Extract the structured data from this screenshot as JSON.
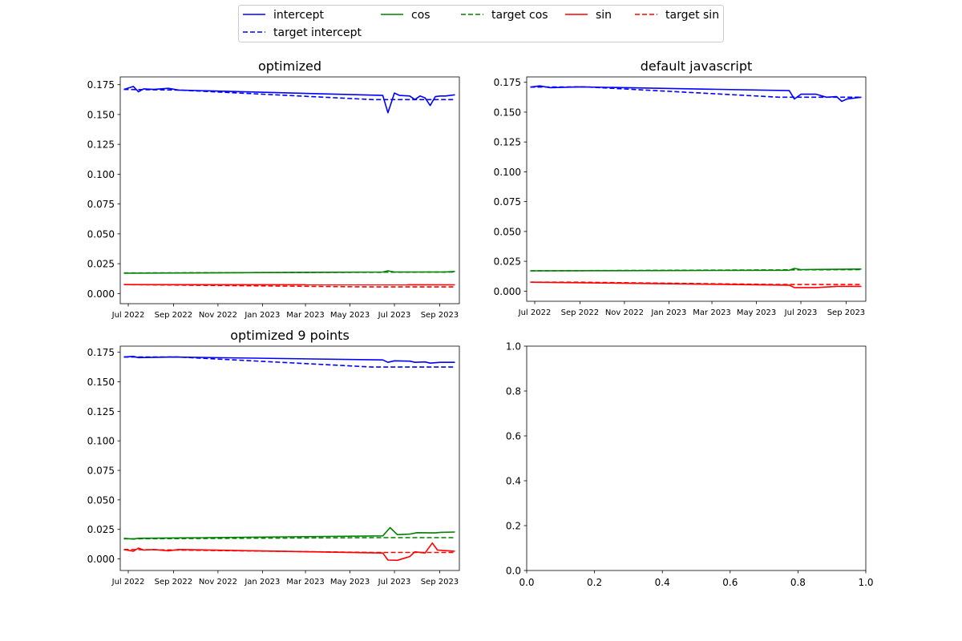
{
  "legend": {
    "placement": "top-center",
    "entries": [
      {
        "label": "intercept",
        "color": "#0000ff",
        "dash": "solid"
      },
      {
        "label": "target intercept",
        "color": "#0000ff",
        "dash": "dashed"
      },
      {
        "label": "cos",
        "color": "#008000",
        "dash": "solid"
      },
      {
        "label": "target cos",
        "color": "#008000",
        "dash": "dashed"
      },
      {
        "label": "sin",
        "color": "#ff0000",
        "dash": "solid"
      },
      {
        "label": "target sin",
        "color": "#ff0000",
        "dash": "dashed"
      }
    ]
  },
  "chart_data": [
    {
      "type": "line",
      "title": "optimized",
      "xlabel": "",
      "ylabel": "",
      "x_axis": "date",
      "xlim": [
        "2022-06-20",
        "2023-09-28"
      ],
      "ylim": [
        -0.0085,
        0.1815
      ],
      "xticks": [
        {
          "date": "2022-07-01",
          "label": "Jul 2022"
        },
        {
          "date": "2022-09-01",
          "label": "Sep 2022"
        },
        {
          "date": "2022-11-01",
          "label": "Nov 2022"
        },
        {
          "date": "2023-01-01",
          "label": "Jan 2023"
        },
        {
          "date": "2023-03-01",
          "label": "Mar 2023"
        },
        {
          "date": "2023-05-01",
          "label": "May 2023"
        },
        {
          "date": "2023-07-01",
          "label": "Jul 2023"
        },
        {
          "date": "2023-09-01",
          "label": "Sep 2023"
        }
      ],
      "yticks": [
        {
          "value": 0.0,
          "label": "0.000"
        },
        {
          "value": 0.025,
          "label": "0.025"
        },
        {
          "value": 0.05,
          "label": "0.050"
        },
        {
          "value": 0.075,
          "label": "0.075"
        },
        {
          "value": 0.1,
          "label": "0.100"
        },
        {
          "value": 0.125,
          "label": "0.125"
        },
        {
          "value": 0.15,
          "label": "0.150"
        },
        {
          "value": 0.175,
          "label": "0.175"
        }
      ],
      "grid": false,
      "series": [
        {
          "name": "intercept",
          "color": "#0000ff",
          "dash": "solid",
          "x": [
            "2022-06-25",
            "2022-07-08",
            "2022-07-15",
            "2022-07-22",
            "2022-08-05",
            "2022-08-25",
            "2022-09-08",
            "2023-06-15",
            "2023-06-22",
            "2023-07-01",
            "2023-07-08",
            "2023-07-22",
            "2023-07-29",
            "2023-08-05",
            "2023-08-12",
            "2023-08-19",
            "2023-08-26",
            "2023-09-02",
            "2023-09-09",
            "2023-09-22"
          ],
          "y": [
            0.171,
            0.1735,
            0.169,
            0.1715,
            0.171,
            0.172,
            0.1705,
            0.166,
            0.1515,
            0.168,
            0.166,
            0.1655,
            0.1625,
            0.1655,
            0.164,
            0.1575,
            0.165,
            0.1655,
            0.1655,
            0.1665
          ]
        },
        {
          "name": "target intercept",
          "color": "#0000ff",
          "dash": "dashed",
          "x": [
            "2022-06-25",
            "2022-09-08",
            "2023-06-01",
            "2023-09-22"
          ],
          "y": [
            0.171,
            0.1705,
            0.1625,
            0.1625
          ]
        },
        {
          "name": "cos",
          "color": "#008000",
          "dash": "solid",
          "x": [
            "2022-06-25",
            "2023-06-15",
            "2023-06-22",
            "2023-07-01",
            "2023-09-08",
            "2023-09-22"
          ],
          "y": [
            0.017,
            0.018,
            0.019,
            0.018,
            0.018,
            0.0185
          ]
        },
        {
          "name": "target cos",
          "color": "#008000",
          "dash": "dashed",
          "x": [
            "2022-06-25",
            "2023-09-22"
          ],
          "y": [
            0.0172,
            0.018
          ]
        },
        {
          "name": "sin",
          "color": "#ff0000",
          "dash": "solid",
          "x": [
            "2022-06-25",
            "2023-09-22"
          ],
          "y": [
            0.0075,
            0.0073
          ]
        },
        {
          "name": "target sin",
          "color": "#ff0000",
          "dash": "dashed",
          "x": [
            "2022-06-25",
            "2023-06-01",
            "2023-09-22"
          ],
          "y": [
            0.0075,
            0.0055,
            0.0055
          ]
        }
      ]
    },
    {
      "type": "line",
      "title": "default javascript",
      "xlabel": "",
      "ylabel": "",
      "x_axis": "date",
      "xlim": [
        "2022-06-20",
        "2023-09-28"
      ],
      "ylim": [
        -0.0085,
        0.1795
      ],
      "xticks": [
        {
          "date": "2022-07-01",
          "label": "Jul 2022"
        },
        {
          "date": "2022-09-01",
          "label": "Sep 2022"
        },
        {
          "date": "2022-11-01",
          "label": "Nov 2022"
        },
        {
          "date": "2023-01-01",
          "label": "Jan 2023"
        },
        {
          "date": "2023-03-01",
          "label": "Mar 2023"
        },
        {
          "date": "2023-05-01",
          "label": "May 2023"
        },
        {
          "date": "2023-07-01",
          "label": "Jul 2023"
        },
        {
          "date": "2023-09-01",
          "label": "Sep 2023"
        }
      ],
      "yticks": [
        {
          "value": 0.0,
          "label": "0.000"
        },
        {
          "value": 0.025,
          "label": "0.025"
        },
        {
          "value": 0.05,
          "label": "0.050"
        },
        {
          "value": 0.075,
          "label": "0.075"
        },
        {
          "value": 0.1,
          "label": "0.100"
        },
        {
          "value": 0.125,
          "label": "0.125"
        },
        {
          "value": 0.15,
          "label": "0.150"
        },
        {
          "value": 0.175,
          "label": "0.175"
        }
      ],
      "grid": false,
      "series": [
        {
          "name": "intercept",
          "color": "#0000ff",
          "dash": "solid",
          "x": [
            "2022-06-25",
            "2022-07-08",
            "2022-07-22",
            "2022-09-01",
            "2023-06-15",
            "2023-06-22",
            "2023-07-01",
            "2023-07-22",
            "2023-08-05",
            "2023-08-19",
            "2023-08-26",
            "2023-09-02",
            "2023-09-22"
          ],
          "y": [
            0.171,
            0.172,
            0.1705,
            0.1712,
            0.168,
            0.161,
            0.165,
            0.165,
            0.1625,
            0.163,
            0.159,
            0.161,
            0.1625
          ]
        },
        {
          "name": "target intercept",
          "color": "#0000ff",
          "dash": "dashed",
          "x": [
            "2022-06-25",
            "2022-09-08",
            "2023-06-01",
            "2023-09-22"
          ],
          "y": [
            0.171,
            0.1712,
            0.1625,
            0.1625
          ]
        },
        {
          "name": "cos",
          "color": "#008000",
          "dash": "solid",
          "x": [
            "2022-06-25",
            "2023-06-15",
            "2023-06-22",
            "2023-07-01",
            "2023-09-22"
          ],
          "y": [
            0.017,
            0.0175,
            0.019,
            0.018,
            0.0185
          ]
        },
        {
          "name": "target cos",
          "color": "#008000",
          "dash": "dashed",
          "x": [
            "2022-06-25",
            "2023-09-22"
          ],
          "y": [
            0.017,
            0.018
          ]
        },
        {
          "name": "sin",
          "color": "#ff0000",
          "dash": "solid",
          "x": [
            "2022-06-25",
            "2023-06-15",
            "2023-06-22",
            "2023-07-22",
            "2023-08-19",
            "2023-09-22"
          ],
          "y": [
            0.0075,
            0.005,
            0.003,
            0.003,
            0.004,
            0.004
          ]
        },
        {
          "name": "target sin",
          "color": "#ff0000",
          "dash": "dashed",
          "x": [
            "2022-06-25",
            "2022-09-01",
            "2023-06-01",
            "2023-09-22"
          ],
          "y": [
            0.0075,
            0.0075,
            0.0055,
            0.0055
          ]
        }
      ]
    },
    {
      "type": "line",
      "title": "optimized 9 points",
      "xlabel": "",
      "ylabel": "",
      "x_axis": "date",
      "xlim": [
        "2022-06-20",
        "2023-09-28"
      ],
      "ylim": [
        -0.0098,
        0.1802
      ],
      "xticks": [
        {
          "date": "2022-07-01",
          "label": "Jul 2022"
        },
        {
          "date": "2022-09-01",
          "label": "Sep 2022"
        },
        {
          "date": "2022-11-01",
          "label": "Nov 2022"
        },
        {
          "date": "2023-01-01",
          "label": "Jan 2023"
        },
        {
          "date": "2023-03-01",
          "label": "Mar 2023"
        },
        {
          "date": "2023-05-01",
          "label": "May 2023"
        },
        {
          "date": "2023-07-01",
          "label": "Jul 2023"
        },
        {
          "date": "2023-09-01",
          "label": "Sep 2023"
        }
      ],
      "yticks": [
        {
          "value": 0.0,
          "label": "0.000"
        },
        {
          "value": 0.025,
          "label": "0.025"
        },
        {
          "value": 0.05,
          "label": "0.050"
        },
        {
          "value": 0.075,
          "label": "0.075"
        },
        {
          "value": 0.1,
          "label": "0.100"
        },
        {
          "value": 0.125,
          "label": "0.125"
        },
        {
          "value": 0.15,
          "label": "0.150"
        },
        {
          "value": 0.175,
          "label": "0.175"
        }
      ],
      "grid": false,
      "series": [
        {
          "name": "intercept",
          "color": "#0000ff",
          "dash": "solid",
          "x": [
            "2022-06-25",
            "2022-07-08",
            "2022-07-15",
            "2022-09-01",
            "2023-06-15",
            "2023-06-22",
            "2023-07-01",
            "2023-07-22",
            "2023-07-29",
            "2023-08-12",
            "2023-08-19",
            "2023-09-02",
            "2023-09-22"
          ],
          "y": [
            0.171,
            0.1715,
            0.1705,
            0.171,
            0.1685,
            0.1665,
            0.1678,
            0.1675,
            0.1665,
            0.1668,
            0.1658,
            0.1665,
            0.1665
          ]
        },
        {
          "name": "target intercept",
          "color": "#0000ff",
          "dash": "dashed",
          "x": [
            "2022-06-25",
            "2022-09-08",
            "2023-06-01",
            "2023-09-22"
          ],
          "y": [
            0.171,
            0.171,
            0.1625,
            0.1625
          ]
        },
        {
          "name": "cos",
          "color": "#008000",
          "dash": "solid",
          "x": [
            "2022-06-25",
            "2022-07-08",
            "2022-07-15",
            "2023-06-15",
            "2023-06-25",
            "2023-07-05",
            "2023-07-22",
            "2023-08-01",
            "2023-08-26",
            "2023-09-02",
            "2023-09-22"
          ],
          "y": [
            0.0175,
            0.0168,
            0.0175,
            0.0195,
            0.0265,
            0.0205,
            0.021,
            0.0222,
            0.022,
            0.0225,
            0.0228
          ]
        },
        {
          "name": "target cos",
          "color": "#008000",
          "dash": "dashed",
          "x": [
            "2022-06-25",
            "2023-06-01",
            "2023-09-22"
          ],
          "y": [
            0.017,
            0.018,
            0.018
          ]
        },
        {
          "name": "sin",
          "color": "#ff0000",
          "dash": "solid",
          "x": [
            "2022-06-25",
            "2022-07-08",
            "2022-07-15",
            "2022-07-22",
            "2022-08-05",
            "2022-08-25",
            "2022-09-08",
            "2023-06-15",
            "2023-06-22",
            "2023-07-05",
            "2023-07-22",
            "2023-07-29",
            "2023-08-12",
            "2023-08-22",
            "2023-08-29",
            "2023-09-08",
            "2023-09-22"
          ],
          "y": [
            0.008,
            0.0065,
            0.0092,
            0.0075,
            0.008,
            0.0068,
            0.008,
            0.005,
            -0.001,
            -0.0012,
            0.002,
            0.006,
            0.005,
            0.0135,
            0.0075,
            0.007,
            0.0065
          ]
        },
        {
          "name": "target sin",
          "color": "#ff0000",
          "dash": "dashed",
          "x": [
            "2022-06-25",
            "2022-09-08",
            "2023-06-01",
            "2023-09-22"
          ],
          "y": [
            0.008,
            0.0075,
            0.0055,
            0.0055
          ]
        }
      ]
    },
    {
      "type": "line",
      "title": "",
      "xlabel": "",
      "ylabel": "",
      "xlim": [
        0,
        1
      ],
      "ylim": [
        0,
        1
      ],
      "xticks": [
        {
          "value": 0.0,
          "label": "0.0"
        },
        {
          "value": 0.2,
          "label": "0.2"
        },
        {
          "value": 0.4,
          "label": "0.4"
        },
        {
          "value": 0.6,
          "label": "0.6"
        },
        {
          "value": 0.8,
          "label": "0.8"
        },
        {
          "value": 1.0,
          "label": "1.0"
        }
      ],
      "yticks": [
        {
          "value": 0.0,
          "label": "0.0"
        },
        {
          "value": 0.2,
          "label": "0.2"
        },
        {
          "value": 0.4,
          "label": "0.4"
        },
        {
          "value": 0.6,
          "label": "0.6"
        },
        {
          "value": 0.8,
          "label": "0.8"
        },
        {
          "value": 1.0,
          "label": "1.0"
        }
      ],
      "grid": false,
      "series": []
    }
  ]
}
